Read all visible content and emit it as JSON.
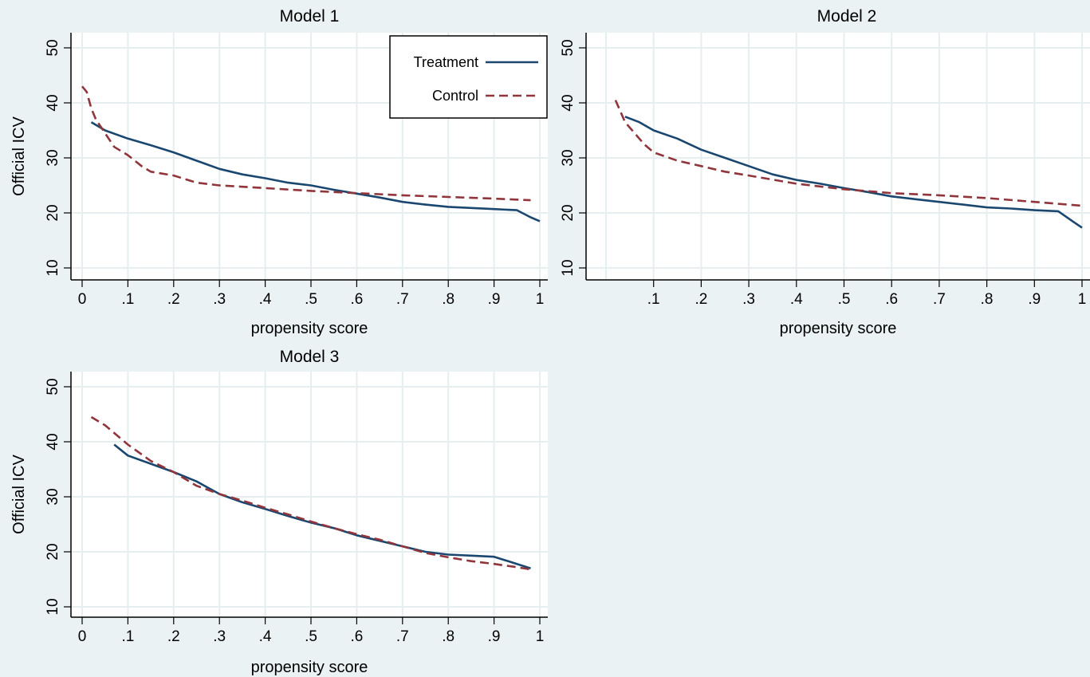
{
  "colors": {
    "background": "#eaf2f3",
    "plot_area": "#ffffff",
    "grid": "#e6eef0",
    "treatment": "#1a476f",
    "control": "#90353b"
  },
  "chart_data": [
    {
      "type": "line",
      "title": "Model 1",
      "xlabel": "propensity score",
      "ylabel": "Official ICV",
      "xlim": [
        0,
        1
      ],
      "ylim": [
        10,
        50
      ],
      "x_ticks": [
        "0",
        ".1",
        ".2",
        ".3",
        ".4",
        ".5",
        ".6",
        ".7",
        ".8",
        ".9",
        "1"
      ],
      "y_ticks": [
        "10",
        "20",
        "30",
        "40",
        "50"
      ],
      "grid": true,
      "legend": {
        "placement": "top-right",
        "entries": [
          "Treatment",
          "Control"
        ]
      },
      "series": [
        {
          "name": "Treatment",
          "style": "solid",
          "x": [
            0.02,
            0.05,
            0.1,
            0.15,
            0.2,
            0.25,
            0.3,
            0.35,
            0.4,
            0.45,
            0.5,
            0.55,
            0.6,
            0.65,
            0.7,
            0.75,
            0.8,
            0.85,
            0.9,
            0.95,
            0.98,
            1.0
          ],
          "y": [
            36.5,
            35.0,
            33.5,
            32.3,
            31.0,
            29.5,
            28.0,
            27.0,
            26.3,
            25.5,
            25.0,
            24.2,
            23.5,
            22.8,
            22.0,
            21.5,
            21.1,
            20.9,
            20.7,
            20.5,
            19.2,
            18.5
          ]
        },
        {
          "name": "Control",
          "style": "dashed",
          "x": [
            0.0,
            0.01,
            0.02,
            0.03,
            0.05,
            0.07,
            0.1,
            0.13,
            0.15,
            0.2,
            0.25,
            0.3,
            0.4,
            0.5,
            0.6,
            0.7,
            0.8,
            0.9,
            0.98
          ],
          "y": [
            43.0,
            42.0,
            39.0,
            37.0,
            34.5,
            32.0,
            30.5,
            28.5,
            27.5,
            26.8,
            25.5,
            25.0,
            24.5,
            24.0,
            23.6,
            23.2,
            22.9,
            22.6,
            22.3
          ]
        }
      ]
    },
    {
      "type": "line",
      "title": "Model 2",
      "xlabel": "propensity score",
      "ylabel": "",
      "xlim": [
        0,
        1
      ],
      "ylim": [
        10,
        50
      ],
      "x_ticks": [
        ".1",
        ".2",
        ".3",
        ".4",
        ".5",
        ".6",
        ".7",
        ".8",
        ".9",
        "1"
      ],
      "y_ticks": [
        "10",
        "20",
        "30",
        "40",
        "50"
      ],
      "grid": true,
      "series": [
        {
          "name": "Treatment",
          "style": "solid",
          "x": [
            0.04,
            0.07,
            0.1,
            0.15,
            0.2,
            0.25,
            0.3,
            0.35,
            0.4,
            0.45,
            0.5,
            0.55,
            0.6,
            0.65,
            0.7,
            0.75,
            0.8,
            0.85,
            0.9,
            0.95,
            0.98,
            1.0
          ],
          "y": [
            37.5,
            36.5,
            35.0,
            33.5,
            31.5,
            30.0,
            28.5,
            27.0,
            26.0,
            25.3,
            24.5,
            23.8,
            23.0,
            22.5,
            22.0,
            21.5,
            21.0,
            20.8,
            20.5,
            20.3,
            18.5,
            17.3
          ]
        },
        {
          "name": "Control",
          "style": "dashed",
          "x": [
            0.02,
            0.03,
            0.04,
            0.06,
            0.08,
            0.1,
            0.15,
            0.2,
            0.25,
            0.3,
            0.4,
            0.5,
            0.6,
            0.7,
            0.8,
            0.9,
            1.0
          ],
          "y": [
            40.5,
            38.5,
            36.5,
            34.5,
            32.5,
            31.0,
            29.5,
            28.5,
            27.5,
            26.8,
            25.3,
            24.3,
            23.6,
            23.2,
            22.7,
            22.0,
            21.3
          ]
        }
      ]
    },
    {
      "type": "line",
      "title": "Model 3",
      "xlabel": "propensity score",
      "ylabel": "Official ICV",
      "xlim": [
        0,
        1
      ],
      "ylim": [
        10,
        50
      ],
      "x_ticks": [
        "0",
        ".1",
        ".2",
        ".3",
        ".4",
        ".5",
        ".6",
        ".7",
        ".8",
        ".9",
        "1"
      ],
      "y_ticks": [
        "10",
        "20",
        "30",
        "40",
        "50"
      ],
      "grid": true,
      "series": [
        {
          "name": "Treatment",
          "style": "solid",
          "x": [
            0.07,
            0.1,
            0.15,
            0.2,
            0.25,
            0.3,
            0.35,
            0.4,
            0.45,
            0.5,
            0.55,
            0.6,
            0.65,
            0.7,
            0.75,
            0.8,
            0.85,
            0.9,
            0.95,
            0.98
          ],
          "y": [
            39.5,
            37.5,
            36.0,
            34.5,
            32.8,
            30.5,
            29.0,
            27.8,
            26.5,
            25.3,
            24.3,
            23.0,
            22.0,
            21.0,
            20.0,
            19.5,
            19.3,
            19.1,
            17.8,
            17.0
          ]
        },
        {
          "name": "Control",
          "style": "dashed",
          "x": [
            0.02,
            0.05,
            0.1,
            0.15,
            0.2,
            0.25,
            0.3,
            0.35,
            0.4,
            0.45,
            0.5,
            0.55,
            0.6,
            0.65,
            0.7,
            0.75,
            0.8,
            0.85,
            0.9,
            0.95,
            0.98
          ],
          "y": [
            44.5,
            43.0,
            39.5,
            36.5,
            34.5,
            32.0,
            30.5,
            29.3,
            28.0,
            26.8,
            25.5,
            24.3,
            23.2,
            22.2,
            21.0,
            19.8,
            19.0,
            18.3,
            17.8,
            17.2,
            16.8
          ]
        }
      ]
    }
  ]
}
